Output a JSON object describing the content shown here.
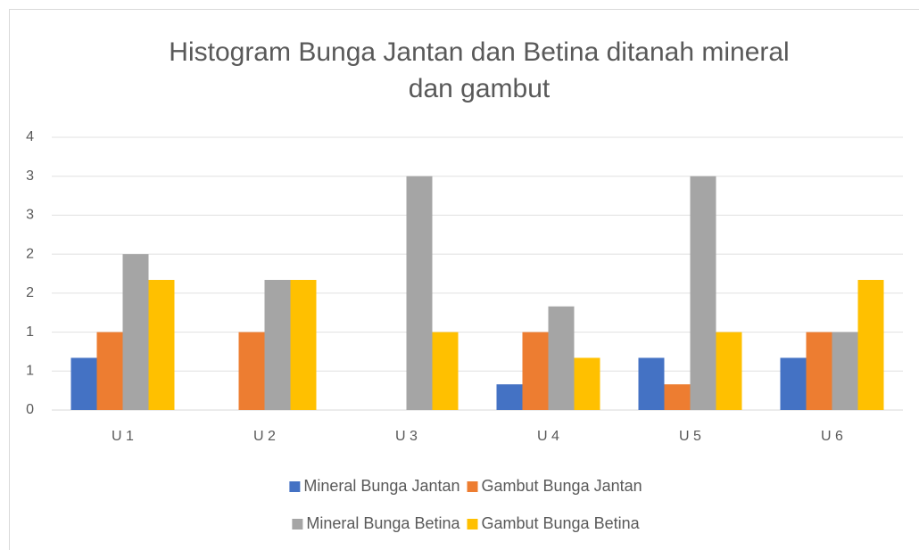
{
  "chart_data": {
    "type": "bar",
    "title": [
      "Histogram Bunga Jantan dan Betina ditanah mineral",
      "dan gambut"
    ],
    "categories": [
      "U 1",
      "U 2",
      "U 3",
      "U 4",
      "U 5",
      "U 6"
    ],
    "series": [
      {
        "name": "Mineral Bunga Jantan",
        "color": "#4472c4",
        "values": [
          0.67,
          0,
          0,
          0.33,
          0.67,
          0.67
        ]
      },
      {
        "name": "Gambut Bunga Jantan",
        "color": "#ed7d31",
        "values": [
          1,
          1,
          0,
          1,
          0.33,
          1
        ]
      },
      {
        "name": "Mineral Bunga Betina",
        "color": "#a5a5a5",
        "values": [
          2,
          1.67,
          3,
          1.33,
          3,
          1
        ]
      },
      {
        "name": "Gambut Bunga Betina",
        "color": "#ffc000",
        "values": [
          1.67,
          1.67,
          1,
          0.67,
          1,
          1.67
        ]
      }
    ],
    "ylim": [
      0,
      3.5
    ],
    "yticks": [
      0,
      {
        "value": 0.5,
        "label": "1"
      },
      1,
      {
        "value": 1.5,
        "label": "2"
      },
      2,
      {
        "value": 2.5,
        "label": "3"
      },
      3,
      {
        "value": 3.5,
        "label": "4"
      }
    ],
    "grid": true,
    "legend": "bottom"
  }
}
